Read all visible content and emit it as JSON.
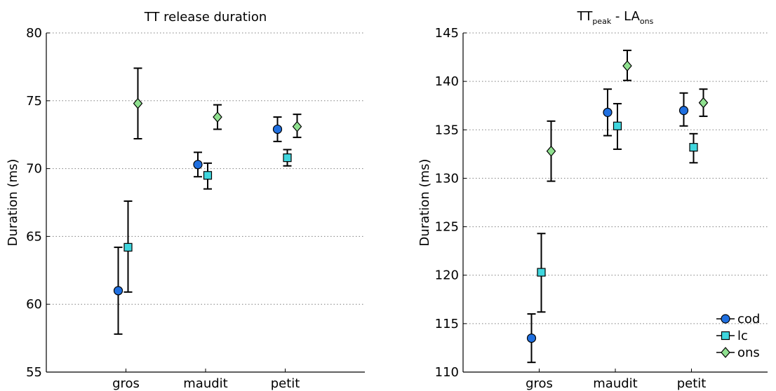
{
  "chart_data": [
    {
      "type": "scatter",
      "title": "TT release duration",
      "ylabel": "Duration (ms)",
      "categories": [
        "gros",
        "maudit",
        "petit"
      ],
      "ylim": [
        55,
        80
      ],
      "yticks": [
        55,
        60,
        65,
        70,
        75,
        80
      ],
      "grid": true,
      "series": [
        {
          "name": "cod",
          "color": "#1f6fe0",
          "marker": "circle",
          "values": [
            61.0,
            70.3,
            72.9
          ],
          "lower": [
            57.8,
            69.4,
            72.0
          ],
          "upper": [
            64.2,
            71.2,
            73.8
          ]
        },
        {
          "name": "lc",
          "color": "#3fd6de",
          "marker": "square",
          "values": [
            64.2,
            69.5,
            70.8
          ],
          "lower": [
            60.9,
            68.5,
            70.2
          ],
          "upper": [
            67.6,
            70.4,
            71.4
          ]
        },
        {
          "name": "ons",
          "color": "#8fe08f",
          "marker": "diamond",
          "values": [
            74.8,
            73.8,
            73.1
          ],
          "lower": [
            72.2,
            72.9,
            72.3
          ],
          "upper": [
            77.4,
            74.7,
            74.0
          ]
        }
      ]
    },
    {
      "type": "scatter",
      "title_main": "TT",
      "title_main_sub": "peak",
      "title_sep": " - ",
      "title_second": "LA",
      "title_second_sub": "ons",
      "ylabel": "Duration (ms)",
      "categories": [
        "gros",
        "maudit",
        "petit"
      ],
      "ylim": [
        110,
        145
      ],
      "yticks": [
        110,
        115,
        120,
        125,
        130,
        135,
        140,
        145
      ],
      "grid": true,
      "legend": "bottom-right",
      "series": [
        {
          "name": "cod",
          "color": "#1f6fe0",
          "marker": "circle",
          "values": [
            113.5,
            136.8,
            137.0
          ],
          "lower": [
            111.0,
            134.4,
            135.4
          ],
          "upper": [
            116.0,
            139.2,
            138.8
          ]
        },
        {
          "name": "lc",
          "color": "#3fd6de",
          "marker": "square",
          "values": [
            120.3,
            135.4,
            133.2
          ],
          "lower": [
            116.2,
            133.0,
            131.6
          ],
          "upper": [
            124.3,
            137.7,
            134.6
          ]
        },
        {
          "name": "ons",
          "color": "#8fe08f",
          "marker": "diamond",
          "values": [
            132.8,
            141.6,
            137.8
          ],
          "lower": [
            129.7,
            140.1,
            136.4
          ],
          "upper": [
            135.9,
            143.2,
            139.2
          ]
        }
      ]
    }
  ]
}
